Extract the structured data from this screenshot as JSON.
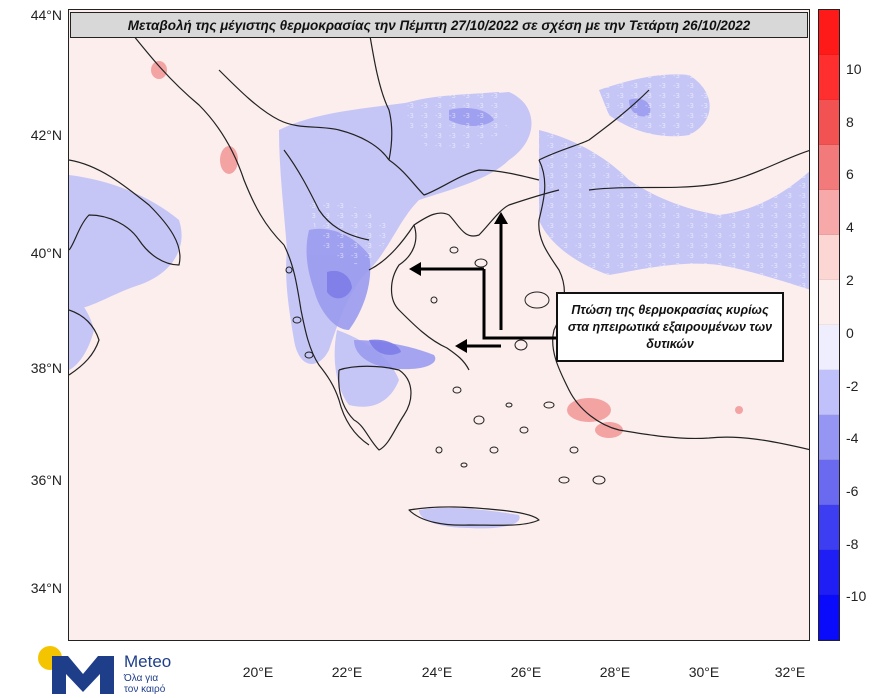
{
  "title": "Μεταβολή της μέγιστης θερμοκρασίας την Πέμπτη 27/10/2022 σε σχέση με την Τετάρτη 26/10/2022",
  "callout": {
    "line1": "Πτώση της θερμοκρασίας κυρίως",
    "line2": "στα ηπειρωτικά εξαιρουμένων των",
    "line3": "δυτικών"
  },
  "axes": {
    "lat_labels": [
      "44°N",
      "42°N",
      "40°N",
      "38°N",
      "36°N",
      "34°N"
    ],
    "lon_labels": [
      "20°E",
      "22°E",
      "24°E",
      "26°E",
      "28°E",
      "30°E",
      "32°E"
    ]
  },
  "colorbar": {
    "labels": [
      "10",
      "8",
      "6",
      "4",
      "2",
      "0",
      "-2",
      "-4",
      "-6",
      "-8",
      "-10"
    ],
    "colors": [
      "#ff1a1a",
      "#ff2f2f",
      "#f25252",
      "#f27a7a",
      "#f7a9a9",
      "#fcd6d3",
      "#fbeeed",
      "#eeeefe",
      "#c0c0fa",
      "#9595f3",
      "#6a6af0",
      "#3d3df2",
      "#1f1ff5",
      "#0b0bfb"
    ]
  },
  "logo": {
    "name": "Meteo",
    "tagline1": "Όλα για",
    "tagline2": "τον καιρό"
  },
  "colors": {
    "warm_background": "#fbeeed",
    "cool_light": "#c3c3f7",
    "cool_mid": "#9b9bf0",
    "cool_strong": "#7d7de8",
    "warm_spot": "#f4a3a3",
    "coast": "#222222"
  }
}
